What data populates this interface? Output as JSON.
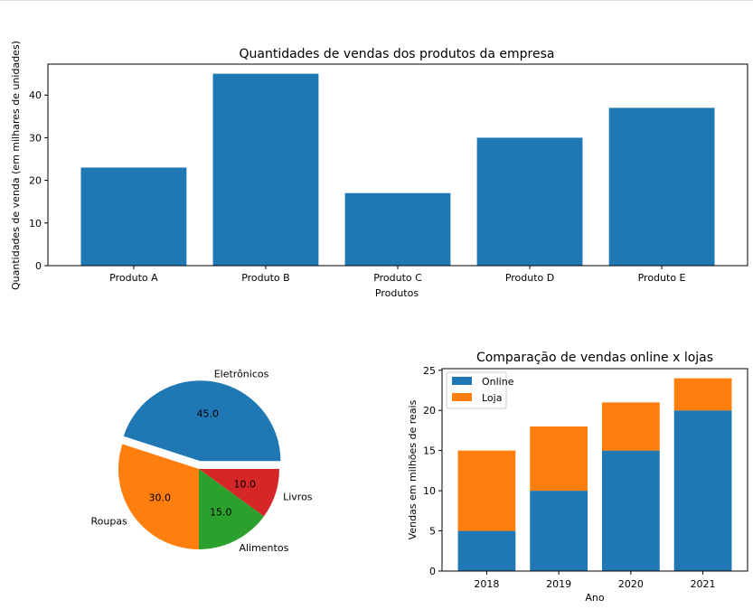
{
  "colors": {
    "blue": "#1f77b4",
    "orange": "#ff7f0e",
    "green": "#2ca02c",
    "red": "#d62728"
  },
  "chart_data": [
    {
      "type": "bar",
      "title": "Quantidades de vendas dos produtos da empresa",
      "xlabel": "Produtos",
      "ylabel": "Quantidades de venda (em milhares de unidades)",
      "categories": [
        "Produto A",
        "Produto B",
        "Produto C",
        "Produto D",
        "Produto E"
      ],
      "values": [
        23,
        45,
        17,
        30,
        37
      ],
      "ylim": [
        0,
        47.25
      ],
      "yticks": [
        0,
        10,
        20,
        30,
        40
      ],
      "color": "#1f77b4"
    },
    {
      "type": "pie",
      "labels": [
        "Eletrônicos",
        "Roupas",
        "Alimentos",
        "Livros"
      ],
      "values": [
        45,
        30,
        15,
        10
      ],
      "value_labels": [
        "45.0",
        "30.0",
        "15.0",
        "10.0"
      ],
      "explode": [
        0.1,
        0,
        0,
        0
      ],
      "colors": [
        "#1f77b4",
        "#ff7f0e",
        "#2ca02c",
        "#d62728"
      ]
    },
    {
      "type": "bar",
      "stacked": true,
      "title": "Comparação de vendas online x lojas",
      "xlabel": "Ano",
      "ylabel": "Vendas em milhões de reais",
      "categories": [
        "2018",
        "2019",
        "2020",
        "2021"
      ],
      "series": [
        {
          "name": "Online",
          "values": [
            5,
            10,
            15,
            20
          ],
          "color": "#1f77b4"
        },
        {
          "name": "Loja",
          "values": [
            10,
            8,
            6,
            4
          ],
          "color": "#ff7f0e"
        }
      ],
      "ylim": [
        0,
        25.2
      ],
      "yticks": [
        0,
        5,
        10,
        15,
        20,
        25
      ],
      "legend": "top-left"
    }
  ]
}
